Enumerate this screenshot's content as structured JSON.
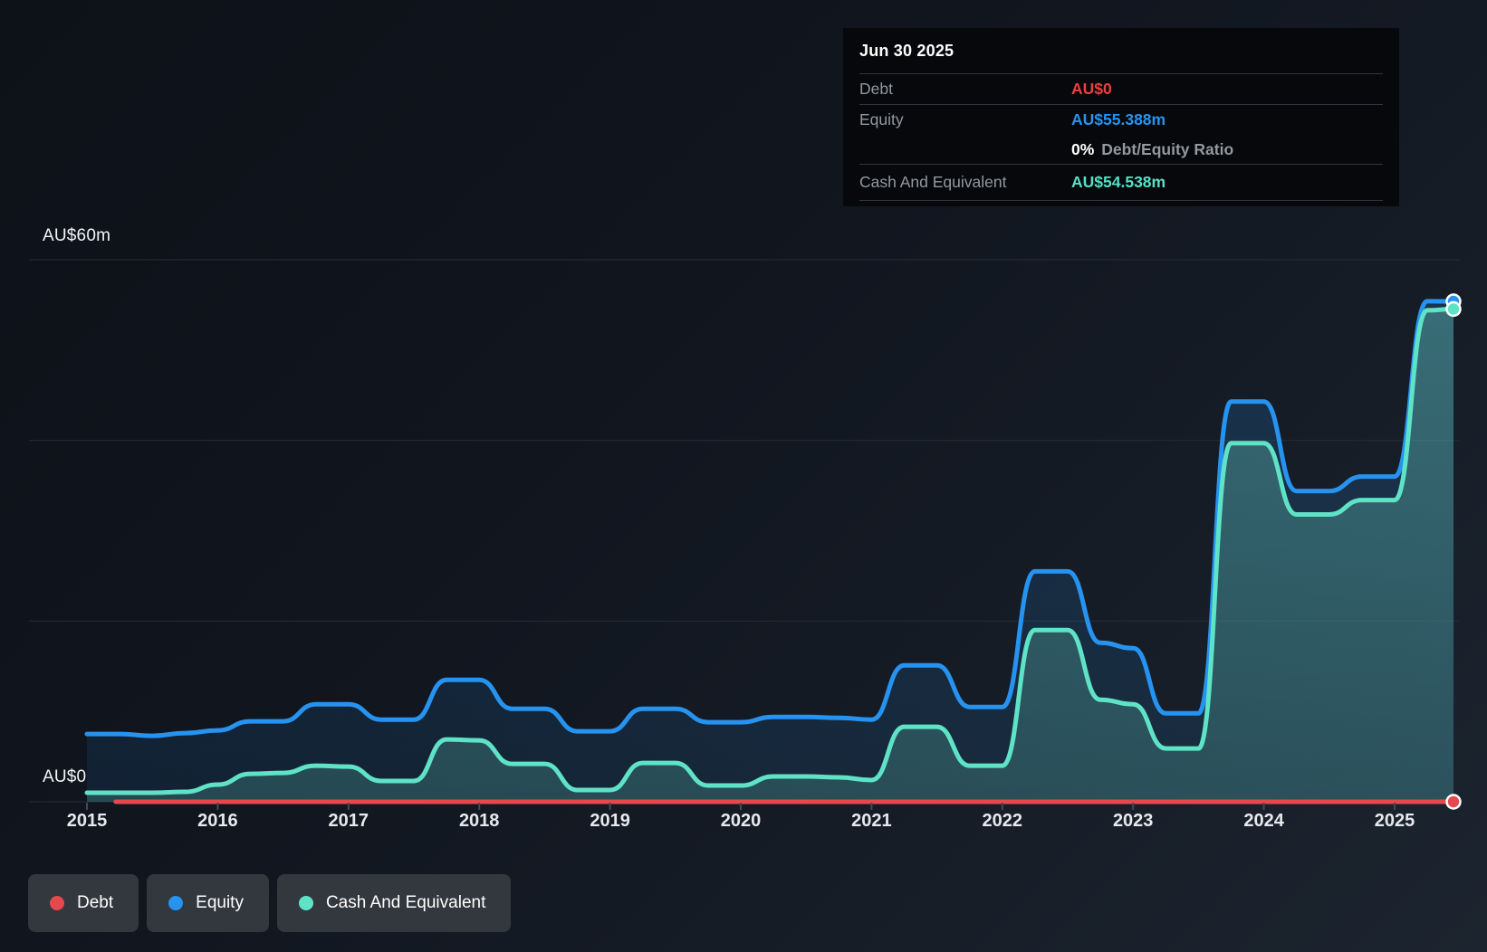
{
  "y_axis": {
    "top_label": "AU$60m",
    "zero_label": "AU$0"
  },
  "x_axis": {
    "years": [
      "2015",
      "2016",
      "2017",
      "2018",
      "2019",
      "2020",
      "2021",
      "2022",
      "2023",
      "2024",
      "2025"
    ]
  },
  "tooltip": {
    "title": "Jun 30 2025",
    "debt_label": "Debt",
    "debt_value": "AU$0",
    "equity_label": "Equity",
    "equity_value": "AU$55.388m",
    "ratio_value": "0%",
    "ratio_label": "Debt/Equity Ratio",
    "cash_label": "Cash And Equivalent",
    "cash_value": "AU$54.538m"
  },
  "legend": {
    "items": [
      {
        "key": "debt",
        "label": "Debt",
        "color": "#e5484d"
      },
      {
        "key": "equity",
        "label": "Equity",
        "color": "#2793f0"
      },
      {
        "key": "cash",
        "label": "Cash And Equivalent",
        "color": "#5fe3c6"
      }
    ]
  },
  "chart_data": {
    "type": "area",
    "title": "Debt, Equity and Cash history (AU$ millions)",
    "unit": "AU$m",
    "ylim": [
      0,
      60
    ],
    "y_gridlines_m": [
      60,
      40,
      20,
      0
    ],
    "y_tick_labels": [
      "AU$60m",
      "AU$0"
    ],
    "x_ticks": [
      2015,
      2016,
      2017,
      2018,
      2019,
      2020,
      2021,
      2022,
      2023,
      2024,
      2025
    ],
    "x_range": [
      2015.0,
      2025.45
    ],
    "legend_position": "bottom-left",
    "grid": true,
    "series": [
      {
        "name": "Equity",
        "color": "#2793f0",
        "fill_top": "rgba(36,146,240,0.20)",
        "fill_bottom": "rgba(36,146,240,0.10)",
        "end_value_label": "AU$55.388m",
        "points": [
          [
            2015.0,
            7.5
          ],
          [
            2015.25,
            7.5
          ],
          [
            2015.5,
            7.3
          ],
          [
            2015.75,
            7.6
          ],
          [
            2016.0,
            7.9
          ],
          [
            2016.25,
            8.9
          ],
          [
            2016.5,
            8.9
          ],
          [
            2016.75,
            10.8
          ],
          [
            2017.0,
            10.8
          ],
          [
            2017.25,
            9.1
          ],
          [
            2017.5,
            9.1
          ],
          [
            2017.75,
            13.5
          ],
          [
            2018.0,
            13.5
          ],
          [
            2018.25,
            10.3
          ],
          [
            2018.5,
            10.3
          ],
          [
            2018.75,
            7.8
          ],
          [
            2019.0,
            7.8
          ],
          [
            2019.25,
            10.3
          ],
          [
            2019.5,
            10.3
          ],
          [
            2019.75,
            8.8
          ],
          [
            2020.0,
            8.8
          ],
          [
            2020.25,
            9.4
          ],
          [
            2020.5,
            9.4
          ],
          [
            2020.75,
            9.3
          ],
          [
            2021.0,
            9.1
          ],
          [
            2021.25,
            15.1
          ],
          [
            2021.5,
            15.1
          ],
          [
            2021.75,
            10.5
          ],
          [
            2022.0,
            10.5
          ],
          [
            2022.25,
            25.5
          ],
          [
            2022.5,
            25.5
          ],
          [
            2022.75,
            17.6
          ],
          [
            2023.0,
            17.0
          ],
          [
            2023.25,
            9.8
          ],
          [
            2023.5,
            9.8
          ],
          [
            2023.75,
            44.3
          ],
          [
            2024.0,
            44.3
          ],
          [
            2024.25,
            34.4
          ],
          [
            2024.5,
            34.4
          ],
          [
            2024.75,
            36.0
          ],
          [
            2025.0,
            36.0
          ],
          [
            2025.25,
            55.4
          ],
          [
            2025.45,
            55.388
          ]
        ]
      },
      {
        "name": "Cash And Equivalent",
        "color": "#5fe3c6",
        "fill_top": "rgba(125,235,208,0.33)",
        "fill_bottom": "rgba(95,195,178,0.24)",
        "end_value_label": "AU$54.538m",
        "points": [
          [
            2015.0,
            1.0
          ],
          [
            2015.25,
            1.0
          ],
          [
            2015.5,
            1.0
          ],
          [
            2015.75,
            1.1
          ],
          [
            2016.0,
            1.9
          ],
          [
            2016.25,
            3.1
          ],
          [
            2016.5,
            3.2
          ],
          [
            2016.75,
            4.0
          ],
          [
            2017.0,
            3.9
          ],
          [
            2017.25,
            2.3
          ],
          [
            2017.5,
            2.3
          ],
          [
            2017.75,
            6.9
          ],
          [
            2018.0,
            6.8
          ],
          [
            2018.25,
            4.2
          ],
          [
            2018.5,
            4.2
          ],
          [
            2018.75,
            1.3
          ],
          [
            2019.0,
            1.3
          ],
          [
            2019.25,
            4.3
          ],
          [
            2019.5,
            4.3
          ],
          [
            2019.75,
            1.8
          ],
          [
            2020.0,
            1.8
          ],
          [
            2020.25,
            2.8
          ],
          [
            2020.5,
            2.8
          ],
          [
            2020.75,
            2.7
          ],
          [
            2021.0,
            2.4
          ],
          [
            2021.25,
            8.3
          ],
          [
            2021.5,
            8.3
          ],
          [
            2021.75,
            4.0
          ],
          [
            2022.0,
            4.0
          ],
          [
            2022.25,
            19.0
          ],
          [
            2022.5,
            19.0
          ],
          [
            2022.75,
            11.3
          ],
          [
            2023.0,
            10.8
          ],
          [
            2023.25,
            5.9
          ],
          [
            2023.5,
            5.9
          ],
          [
            2023.75,
            39.7
          ],
          [
            2024.0,
            39.7
          ],
          [
            2024.25,
            31.8
          ],
          [
            2024.5,
            31.8
          ],
          [
            2024.75,
            33.4
          ],
          [
            2025.0,
            33.4
          ],
          [
            2025.25,
            54.4
          ],
          [
            2025.45,
            54.538
          ]
        ]
      },
      {
        "name": "Debt",
        "color": "#e5484d",
        "fill_top": "none",
        "fill_bottom": "none",
        "end_value_label": "AU$0",
        "points": [
          [
            2015.22,
            0
          ],
          [
            2025.45,
            0
          ]
        ]
      }
    ]
  }
}
